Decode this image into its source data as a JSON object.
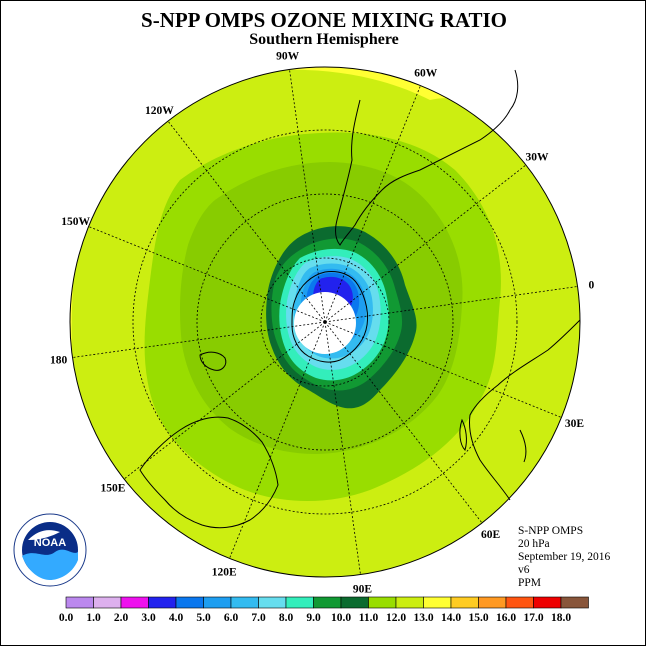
{
  "title": "S-NPP OMPS OZONE MIXING RATIO",
  "subtitle": "Southern Hemisphere",
  "info": {
    "instrument": "S-NPP OMPS",
    "pressure_level": "20 hPa",
    "date": "September 19, 2016",
    "version": "v6",
    "units": "PPM"
  },
  "logo": {
    "name": "noaa-logo",
    "text": "NOAA"
  },
  "longitude_labels": [
    {
      "deg": 90,
      "label": "90W"
    },
    {
      "deg": 60,
      "label": "60W"
    },
    {
      "deg": 30,
      "label": "30W"
    },
    {
      "deg": 0,
      "label": "0"
    },
    {
      "deg": -30,
      "label": "30E"
    },
    {
      "deg": -60,
      "label": "60E"
    },
    {
      "deg": -90,
      "label": "90E"
    },
    {
      "deg": -120,
      "label": "120E"
    },
    {
      "deg": -150,
      "label": "150E"
    },
    {
      "deg": 180,
      "label": "180"
    },
    {
      "deg": 150,
      "label": "150W"
    },
    {
      "deg": 120,
      "label": "120W"
    }
  ],
  "colorbar": {
    "ticks": [
      "0.0",
      "1.0",
      "2.0",
      "3.0",
      "4.0",
      "5.0",
      "6.0",
      "7.0",
      "8.0",
      "9.0",
      "10.0",
      "11.0",
      "12.0",
      "13.0",
      "14.0",
      "15.0",
      "16.0",
      "17.0",
      "18.0"
    ],
    "colors": [
      "#bb88ee",
      "#ddb0ee",
      "#ee11ee",
      "#2222ee",
      "#0a77ee",
      "#1e9ef0",
      "#33bbf0",
      "#66ddee",
      "#33eebb",
      "#119933",
      "#0b6b2f",
      "#99dd00",
      "#ccee11",
      "#ffff33",
      "#ffcc22",
      "#ff9922",
      "#ff5511",
      "#ee0000"
    ],
    "last_color": "#88553a"
  },
  "colors": {
    "outer_yellow": "#ffff33",
    "yellow_green": "#ccee11",
    "green": "#99dd00",
    "dark_green": "#119933",
    "darker_green": "#0b6b2f",
    "cyan_green": "#33eebb",
    "cyan": "#66ddee",
    "light_blue": "#33bbf0",
    "blue": "#1e9ef0",
    "mid_blue": "#0a77ee",
    "deep_blue": "#2222ee"
  }
}
